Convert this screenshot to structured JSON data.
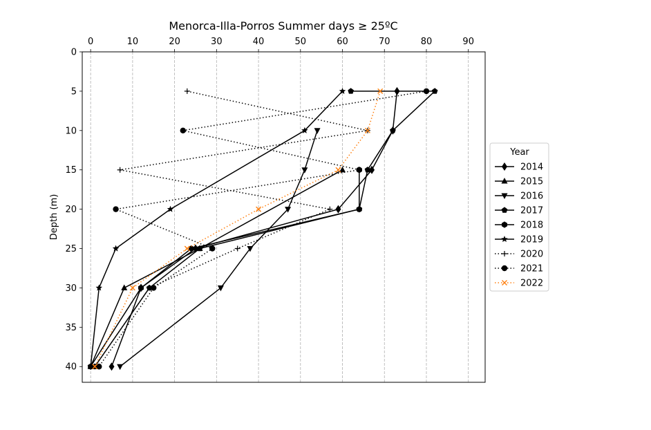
{
  "chart_data": {
    "type": "line",
    "title": "Menorca-Illa-Porros Summer days ≥ 25ºC",
    "xlabel": "",
    "ylabel": "Depth (m)",
    "xlim": [
      -2,
      94
    ],
    "ylim": [
      42,
      0
    ],
    "x_ticks": [
      0,
      10,
      20,
      30,
      40,
      50,
      60,
      70,
      80,
      90
    ],
    "y_ticks": [
      0,
      5,
      10,
      15,
      20,
      25,
      30,
      35,
      40
    ],
    "x_axis_position": "top",
    "y_inverted": true,
    "grid": "vertical dashed",
    "legend_title": "Year",
    "legend_position": "outside right",
    "series": [
      {
        "name": "2014",
        "marker": "diamond",
        "linestyle": "solid",
        "color": "#000000",
        "points": [
          [
            73,
            5
          ],
          [
            72,
            10
          ],
          [
            67,
            15
          ],
          [
            59,
            20
          ],
          [
            25,
            25
          ],
          [
            12,
            30
          ],
          [
            5,
            40
          ]
        ]
      },
      {
        "name": "2015",
        "marker": "triangle-up",
        "linestyle": "solid",
        "color": "#000000",
        "points": [
          [
            60,
            15
          ],
          [
            26,
            25
          ],
          [
            8,
            30
          ],
          [
            0,
            40
          ]
        ]
      },
      {
        "name": "2016",
        "marker": "triangle-down",
        "linestyle": "solid",
        "color": "#000000",
        "points": [
          [
            54,
            10
          ],
          [
            51,
            15
          ],
          [
            47,
            20
          ],
          [
            38,
            25
          ],
          [
            31,
            30
          ],
          [
            7,
            40
          ]
        ]
      },
      {
        "name": "2017",
        "marker": "pentagon",
        "linestyle": "solid",
        "color": "#000000",
        "points": [
          [
            62,
            5
          ],
          [
            82,
            5
          ],
          [
            72,
            10
          ],
          [
            66,
            15
          ],
          [
            64,
            20
          ],
          [
            26,
            25
          ],
          [
            14,
            30
          ],
          [
            1,
            40
          ]
        ]
      },
      {
        "name": "2018",
        "marker": "hexagon",
        "linestyle": "solid",
        "color": "#000000",
        "points": [
          [
            64,
            15
          ],
          [
            64,
            20
          ],
          [
            24,
            25
          ],
          [
            12,
            30
          ],
          [
            0,
            40
          ]
        ]
      },
      {
        "name": "2019",
        "marker": "star",
        "linestyle": "solid",
        "color": "#000000",
        "points": [
          [
            60,
            5
          ],
          [
            51,
            10
          ],
          [
            19,
            20
          ],
          [
            6,
            25
          ],
          [
            2,
            30
          ],
          [
            0,
            40
          ]
        ]
      },
      {
        "name": "2020",
        "marker": "plus",
        "linestyle": "dotted",
        "color": "#000000",
        "points": [
          [
            23,
            5
          ],
          [
            66,
            10
          ],
          [
            7,
            15
          ],
          [
            57,
            20
          ],
          [
            35,
            25
          ],
          [
            14,
            30
          ],
          [
            1,
            40
          ]
        ]
      },
      {
        "name": "2021",
        "marker": "circle",
        "linestyle": "dotted",
        "color": "#000000",
        "points": [
          [
            80,
            5
          ],
          [
            22,
            10
          ],
          [
            64,
            15
          ],
          [
            6,
            20
          ],
          [
            29,
            25
          ],
          [
            15,
            30
          ],
          [
            2,
            40
          ]
        ]
      },
      {
        "name": "2022",
        "marker": "x",
        "linestyle": "dotted",
        "color": "#ff7f0e",
        "points": [
          [
            69,
            5
          ],
          [
            66,
            10
          ],
          [
            59,
            15
          ],
          [
            40,
            20
          ],
          [
            23,
            25
          ],
          [
            10,
            30
          ],
          [
            1,
            40
          ]
        ]
      }
    ]
  }
}
